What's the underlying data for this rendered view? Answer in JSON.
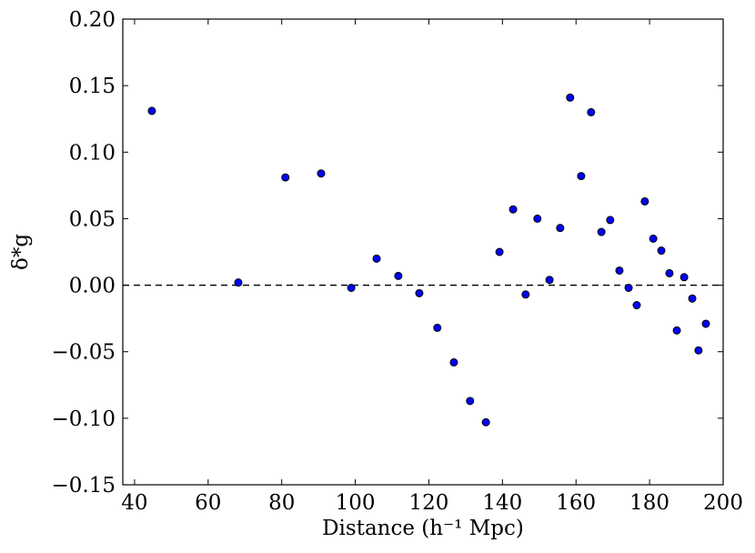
{
  "chart_data": {
    "type": "scatter",
    "x_label": "Distance (h⁻¹ Mpc)",
    "y_label": "δ*g",
    "x": [
      44.7,
      68.2,
      81.0,
      90.7,
      98.9,
      105.8,
      111.7,
      117.4,
      122.3,
      126.8,
      131.2,
      135.5,
      139.2,
      142.9,
      146.3,
      149.5,
      152.8,
      155.7,
      158.4,
      161.4,
      164.1,
      166.9,
      169.3,
      171.8,
      174.3,
      176.5,
      178.7,
      181.0,
      183.2,
      185.4,
      187.4,
      189.4,
      191.6,
      193.3,
      195.3
    ],
    "values": [
      0.131,
      0.002,
      0.081,
      0.084,
      -0.002,
      0.02,
      0.007,
      -0.006,
      -0.032,
      -0.058,
      -0.087,
      -0.103,
      0.025,
      0.057,
      -0.007,
      0.05,
      0.004,
      0.043,
      0.141,
      0.082,
      0.13,
      0.04,
      0.049,
      0.011,
      -0.002,
      -0.015,
      0.063,
      0.035,
      0.026,
      0.009,
      -0.034,
      0.006,
      -0.01,
      -0.049,
      -0.029
    ],
    "color": "#0000ff",
    "hline": 0,
    "xlim": [
      36.8,
      200
    ],
    "ylim": [
      -0.15,
      0.2
    ],
    "xticks": [
      40,
      60,
      80,
      100,
      120,
      140,
      160,
      180,
      200
    ],
    "yticks": [
      {
        "value": -0.15,
        "label": "−0.15"
      },
      {
        "value": -0.1,
        "label": "−0.10"
      },
      {
        "value": -0.05,
        "label": "−0.05"
      },
      {
        "value": 0,
        "label": "0.00"
      },
      {
        "value": 0.05,
        "label": "0.05"
      },
      {
        "value": 0.1,
        "label": "0.10"
      },
      {
        "value": 0.15,
        "label": "0.15"
      },
      {
        "value": 0.2,
        "label": "0.20"
      }
    ]
  }
}
